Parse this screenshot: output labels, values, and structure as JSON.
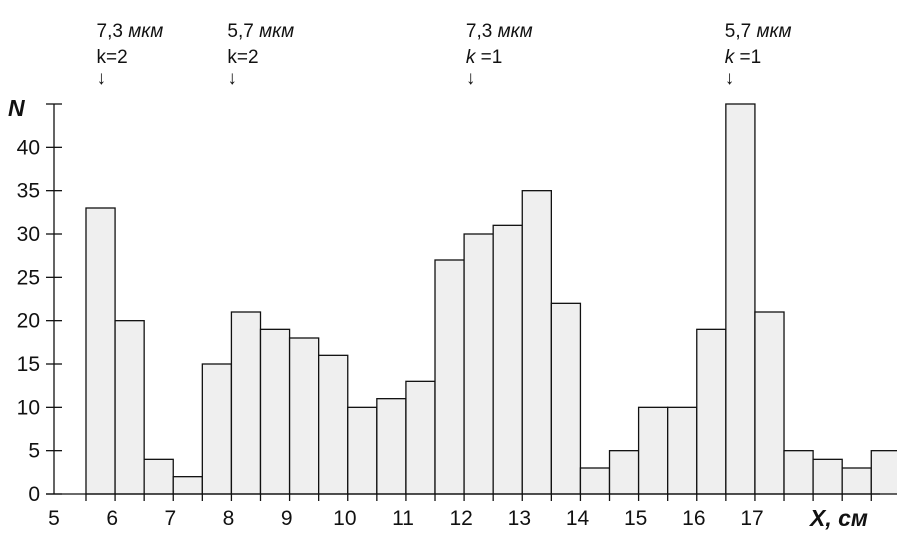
{
  "chart_data": {
    "type": "bar",
    "xlabel": "X, см",
    "ylabel": "N",
    "xlim": [
      5,
      19.2
    ],
    "ylim": [
      0,
      45
    ],
    "bin_width": 0.5,
    "bins": [
      {
        "x0": 5.55,
        "value": 33
      },
      {
        "x0": 6.05,
        "value": 20
      },
      {
        "x0": 6.55,
        "value": 4
      },
      {
        "x0": 7.05,
        "value": 2
      },
      {
        "x0": 7.55,
        "value": 15
      },
      {
        "x0": 8.05,
        "value": 21
      },
      {
        "x0": 8.55,
        "value": 19
      },
      {
        "x0": 9.05,
        "value": 18
      },
      {
        "x0": 9.55,
        "value": 16
      },
      {
        "x0": 10.05,
        "value": 10
      },
      {
        "x0": 10.55,
        "value": 11
      },
      {
        "x0": 11.05,
        "value": 13
      },
      {
        "x0": 11.55,
        "value": 27
      },
      {
        "x0": 12.05,
        "value": 30
      },
      {
        "x0": 12.55,
        "value": 31
      },
      {
        "x0": 13.05,
        "value": 35
      },
      {
        "x0": 13.55,
        "value": 22
      },
      {
        "x0": 14.05,
        "value": 3
      },
      {
        "x0": 14.55,
        "value": 5
      },
      {
        "x0": 15.05,
        "value": 10
      },
      {
        "x0": 15.55,
        "value": 10
      },
      {
        "x0": 16.05,
        "value": 19
      },
      {
        "x0": 16.55,
        "value": 45
      },
      {
        "x0": 17.05,
        "value": 21
      },
      {
        "x0": 17.55,
        "value": 5
      },
      {
        "x0": 18.05,
        "value": 4
      },
      {
        "x0": 18.55,
        "value": 3
      },
      {
        "x0": 19.05,
        "value": 5
      }
    ],
    "x_tick_labels": [
      "5",
      "6",
      "7",
      "8",
      "9",
      "10",
      "11",
      "12",
      "13",
      "14",
      "15",
      "16",
      "17"
    ],
    "x_tick_values": [
      5,
      6,
      7,
      8,
      9,
      10,
      11,
      12,
      13,
      14,
      15,
      16,
      17
    ],
    "y_ticks": [
      0,
      5,
      10,
      15,
      20,
      25,
      30,
      35,
      40,
      45
    ],
    "y_tick_labels": [
      "0",
      "5",
      "10",
      "15",
      "20",
      "25",
      "30",
      "35",
      "40",
      ""
    ],
    "annotations": [
      {
        "x": 5.8,
        "line1": "7,3 мкм",
        "line2": "k=2",
        "arrow": "↓"
      },
      {
        "x": 8.05,
        "line1": "5,7 мкм",
        "line2": "k=2",
        "arrow": "↓"
      },
      {
        "x": 12.15,
        "line1": "7,3 мкм",
        "line2": "k =1",
        "arrow": "↓"
      },
      {
        "x": 16.6,
        "line1": "5,7 мкм",
        "line2": "k =1",
        "arrow": "↓"
      }
    ],
    "grid": false,
    "legend": "none"
  }
}
